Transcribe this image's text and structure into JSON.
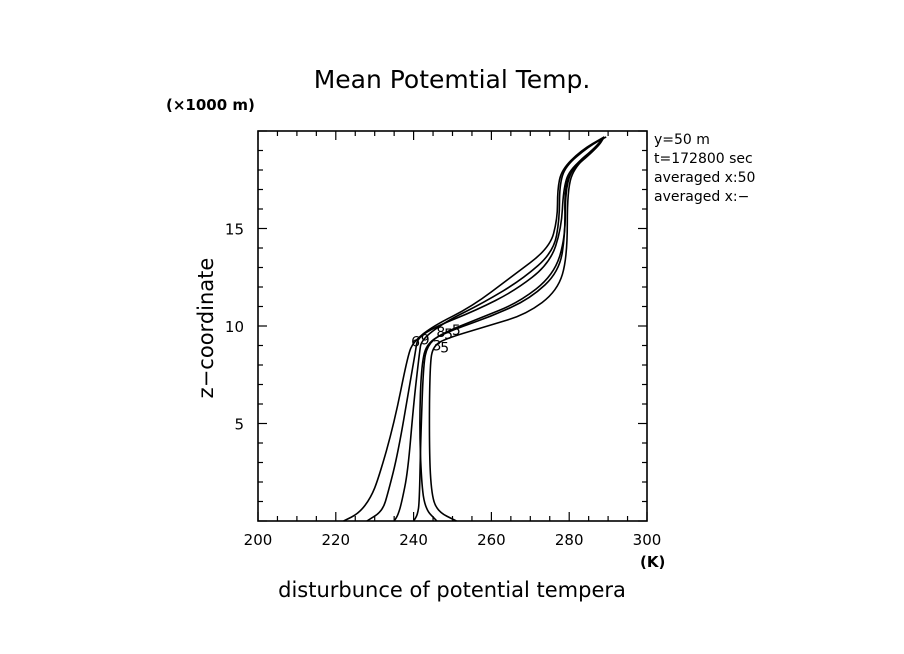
{
  "chart_data": {
    "type": "line",
    "title": "Mean Potemtial Temp.",
    "xlabel": "disturbunce of potential tempera",
    "ylabel": "z−coordinate",
    "x_unit": "(K)",
    "y_unit": "(×1000 m)",
    "xlim": [
      200,
      300
    ],
    "ylim": [
      0,
      20
    ],
    "x_ticks": [
      200,
      220,
      240,
      260,
      280,
      300
    ],
    "y_ticks": [
      5,
      10,
      15
    ],
    "x_tick_labels": [
      "200",
      "220",
      "240",
      "260",
      "280",
      "300"
    ],
    "y_tick_labels": [
      "5",
      "10",
      "15"
    ],
    "annotations": [
      "y=50  m",
      "t=172800 sec",
      "averaged   x:50",
      "averaged   x:−"
    ],
    "marker_labels": [
      "6",
      "9",
      "8",
      "5",
      "5",
      "3",
      "5"
    ],
    "series": [
      {
        "points": [
          [
            222,
            0
          ],
          [
            226,
            0.4
          ],
          [
            229,
            1.2
          ],
          [
            231,
            2.2
          ],
          [
            235,
            5
          ],
          [
            238.5,
            8.5
          ],
          [
            240,
            9.2
          ],
          [
            245,
            10
          ],
          [
            255,
            11
          ],
          [
            265,
            12.5
          ],
          [
            275,
            14
          ],
          [
            277,
            15.5
          ],
          [
            277,
            17
          ],
          [
            278,
            18
          ],
          [
            283,
            19
          ],
          [
            289,
            19.7
          ]
        ]
      },
      {
        "points": [
          [
            235,
            0
          ],
          [
            236,
            0.3
          ],
          [
            237,
            1
          ],
          [
            238.5,
            2.5
          ],
          [
            240,
            6
          ],
          [
            241.5,
            8.6
          ],
          [
            242,
            9.3
          ],
          [
            248,
            10.2
          ],
          [
            258,
            11.2
          ],
          [
            268,
            12.4
          ],
          [
            276,
            13.8
          ],
          [
            277.5,
            15.5
          ],
          [
            277.5,
            17.2
          ],
          [
            279,
            18.2
          ],
          [
            285,
            19.2
          ],
          [
            289.5,
            19.7
          ]
        ]
      },
      {
        "points": [
          [
            228,
            0
          ],
          [
            232,
            0.5
          ],
          [
            233.5,
            1.5
          ],
          [
            236,
            3.5
          ],
          [
            239,
            7
          ],
          [
            240.5,
            8.7
          ],
          [
            241,
            9.4
          ],
          [
            246,
            10
          ],
          [
            256,
            10.8
          ],
          [
            266,
            11.8
          ],
          [
            275,
            13.2
          ],
          [
            278,
            15
          ],
          [
            278.5,
            17
          ],
          [
            280,
            18
          ],
          [
            286,
            19
          ],
          [
            289,
            19.7
          ]
        ]
      },
      {
        "points": [
          [
            240,
            0
          ],
          [
            241,
            0.3
          ],
          [
            241.5,
            1
          ],
          [
            241.8,
            4
          ],
          [
            242.5,
            8
          ],
          [
            243.5,
            9
          ],
          [
            247,
            9.6
          ],
          [
            257,
            10.4
          ],
          [
            267,
            11.2
          ],
          [
            276,
            12.6
          ],
          [
            279,
            14.5
          ],
          [
            279,
            17
          ],
          [
            281,
            18.2
          ],
          [
            287,
            19.2
          ],
          [
            289,
            19.7
          ]
        ]
      },
      {
        "points": [
          [
            251,
            0
          ],
          [
            246,
            0.5
          ],
          [
            244.5,
            1.5
          ],
          [
            244,
            4
          ],
          [
            244.2,
            8
          ],
          [
            245,
            9
          ],
          [
            249,
            9.4
          ],
          [
            259,
            10
          ],
          [
            269,
            10.6
          ],
          [
            277,
            11.8
          ],
          [
            279.5,
            13.5
          ],
          [
            279.5,
            17
          ],
          [
            281.5,
            18.2
          ],
          [
            287.5,
            19.2
          ],
          [
            289,
            19.7
          ]
        ]
      },
      {
        "points": [
          [
            246,
            0
          ],
          [
            243,
            0.6
          ],
          [
            242,
            2
          ],
          [
            241.5,
            5
          ],
          [
            242,
            8
          ],
          [
            243.5,
            9.2
          ],
          [
            250,
            9.8
          ],
          [
            260,
            10.5
          ],
          [
            270,
            11.4
          ],
          [
            277.5,
            12.8
          ],
          [
            279,
            14.8
          ],
          [
            278.8,
            17
          ],
          [
            280.5,
            18
          ],
          [
            286.5,
            19
          ],
          [
            289,
            19.7
          ]
        ]
      }
    ]
  }
}
